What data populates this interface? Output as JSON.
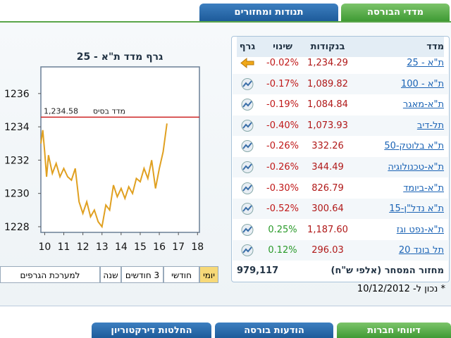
{
  "tabs": [
    "מדדי הבורסה",
    "תנודות ומחזורים"
  ],
  "table": {
    "header": [
      "מדד",
      "בנקודות",
      "שינוי",
      "גרף"
    ],
    "rows": [
      [
        "ת\"א - 25",
        "1,234.29",
        "-0.02%"
      ],
      [
        "ת\"א - 100",
        "1,089.82",
        "-0.17%"
      ],
      [
        "ת\"א-מאגר",
        "1,084.84",
        "-0.19%"
      ],
      [
        "תל-דיב",
        "1,073.93",
        "-0.40%"
      ],
      [
        "ת\"א בלוטק-50",
        "332.26",
        "-0.26%"
      ],
      [
        "ת\"א-טכנולוגיה",
        "344.49",
        "-0.26%"
      ],
      [
        "ת\"א-ביומד",
        "826.79",
        "-0.30%"
      ],
      [
        "ת\"א נדל\"ן-15",
        "300.64",
        "-0.52%"
      ],
      [
        "ת\"א-נפט וגז",
        "1,187.60",
        "0.25%"
      ],
      [
        "תל בונד 20",
        "296.03",
        "0.12%"
      ]
    ],
    "footer": {
      "label": "מחזור המסחר (אלפי ש\"ח)",
      "value": "979,117"
    }
  },
  "note": "* נכון ל- 10/12/2012",
  "chart": {
    "type": "line",
    "title": "גרף מדד ת\"א - 25",
    "color": "#e0a020",
    "x": [
      9.8,
      9.9,
      10.0,
      10.1,
      10.2,
      10.4,
      10.6,
      10.8,
      11.0,
      11.2,
      11.4,
      11.6,
      11.8,
      12.0,
      12.2,
      12.4,
      12.6,
      12.8,
      13.0,
      13.2,
      13.4,
      13.6,
      13.8,
      14.0,
      14.2,
      14.4,
      14.6,
      14.8,
      15.0,
      15.2,
      15.4,
      15.6,
      15.8,
      16.0,
      16.2,
      16.4
    ],
    "values": [
      1233.0,
      1233.8,
      1232.5,
      1231.0,
      1232.3,
      1231.2,
      1231.8,
      1231.0,
      1231.5,
      1231.0,
      1230.8,
      1231.5,
      1229.5,
      1228.8,
      1229.5,
      1228.6,
      1229.0,
      1228.3,
      1228.0,
      1229.3,
      1229.0,
      1230.5,
      1229.8,
      1230.3,
      1229.7,
      1230.4,
      1230.0,
      1230.9,
      1230.7,
      1231.5,
      1230.9,
      1232.0,
      1230.3,
      1231.5,
      1232.5,
      1234.2
    ],
    "xlim": [
      9.8,
      18.1
    ],
    "ylim": [
      1227.66,
      1237.6
    ],
    "xticks": [
      10,
      11,
      12,
      13,
      14,
      15,
      16,
      17,
      18
    ],
    "yticks": [
      1228,
      1230,
      1232,
      1234,
      1236
    ],
    "base_line": {
      "name": "מדד בסיס",
      "value": {
        "value": 1234.58,
        "label": "1,234.58"
      },
      "color": "#cc2222"
    }
  },
  "range_buttons": [
    "יומי",
    "חודשי",
    "3 חודשים",
    "שנה",
    "למערכת הגרפים"
  ],
  "bottom_tabs": [
    "דיווחי חברות",
    "הודעות בורסה",
    "החלטות דירקטוריון"
  ]
}
